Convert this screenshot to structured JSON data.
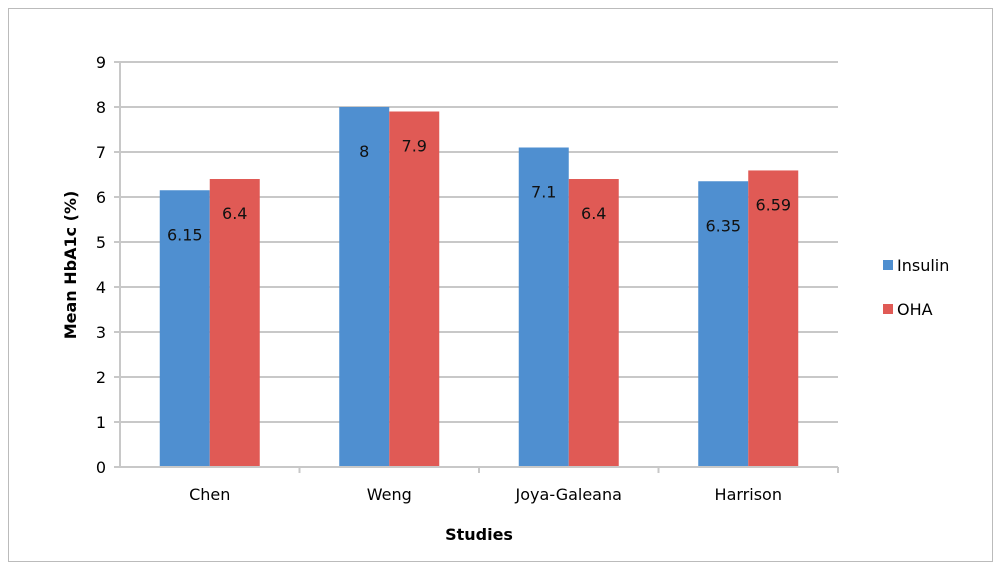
{
  "chart_data": {
    "type": "bar",
    "title": "",
    "xlabel": "Studies",
    "ylabel": "Mean HbA1c (%)",
    "ylim": [
      0,
      9
    ],
    "yticks": [
      0,
      1,
      2,
      3,
      4,
      5,
      6,
      7,
      8,
      9
    ],
    "grid": true,
    "legend_position": "right",
    "categories": [
      "Chen",
      "Weng",
      "Joya-Galeana",
      "Harrison"
    ],
    "series": [
      {
        "name": "Insulin",
        "color": "#4f8fd0",
        "values": [
          6.15,
          8,
          7.1,
          6.35
        ],
        "labels": [
          "6.15",
          "8",
          "7.1",
          "6.35"
        ]
      },
      {
        "name": "OHA",
        "color": "#e05a55",
        "values": [
          6.4,
          7.9,
          6.4,
          6.59
        ],
        "labels": [
          "6.4",
          "7.9",
          "6.4",
          "6.59"
        ]
      }
    ]
  }
}
